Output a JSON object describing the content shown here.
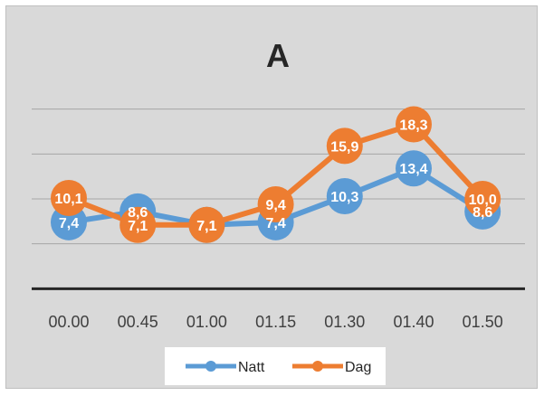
{
  "chart_data": {
    "type": "line",
    "title": "A",
    "xlabel": "",
    "ylabel": "",
    "categories": [
      "00.00",
      "00.45",
      "01.00",
      "01.15",
      "01.30",
      "01.40",
      "01.50"
    ],
    "series": [
      {
        "name": "Natt",
        "color": "#5b9bd5",
        "values": [
          7.4,
          8.6,
          7.1,
          7.4,
          10.3,
          13.4,
          8.6
        ],
        "labels": [
          "7,4",
          "8,6",
          "7,1",
          "7,4",
          "10,3",
          "13,4",
          "8,6"
        ]
      },
      {
        "name": "Dag",
        "color": "#ed7d31",
        "values": [
          10.1,
          7.1,
          7.1,
          9.4,
          15.9,
          18.3,
          10.0
        ],
        "labels": [
          "10,1",
          "7,1",
          "7,1",
          "9,4",
          "15,9",
          "18,3",
          "10,0"
        ]
      }
    ],
    "ylim": [
      -5,
      25
    ],
    "grid": true,
    "legend_position": "bottom"
  }
}
